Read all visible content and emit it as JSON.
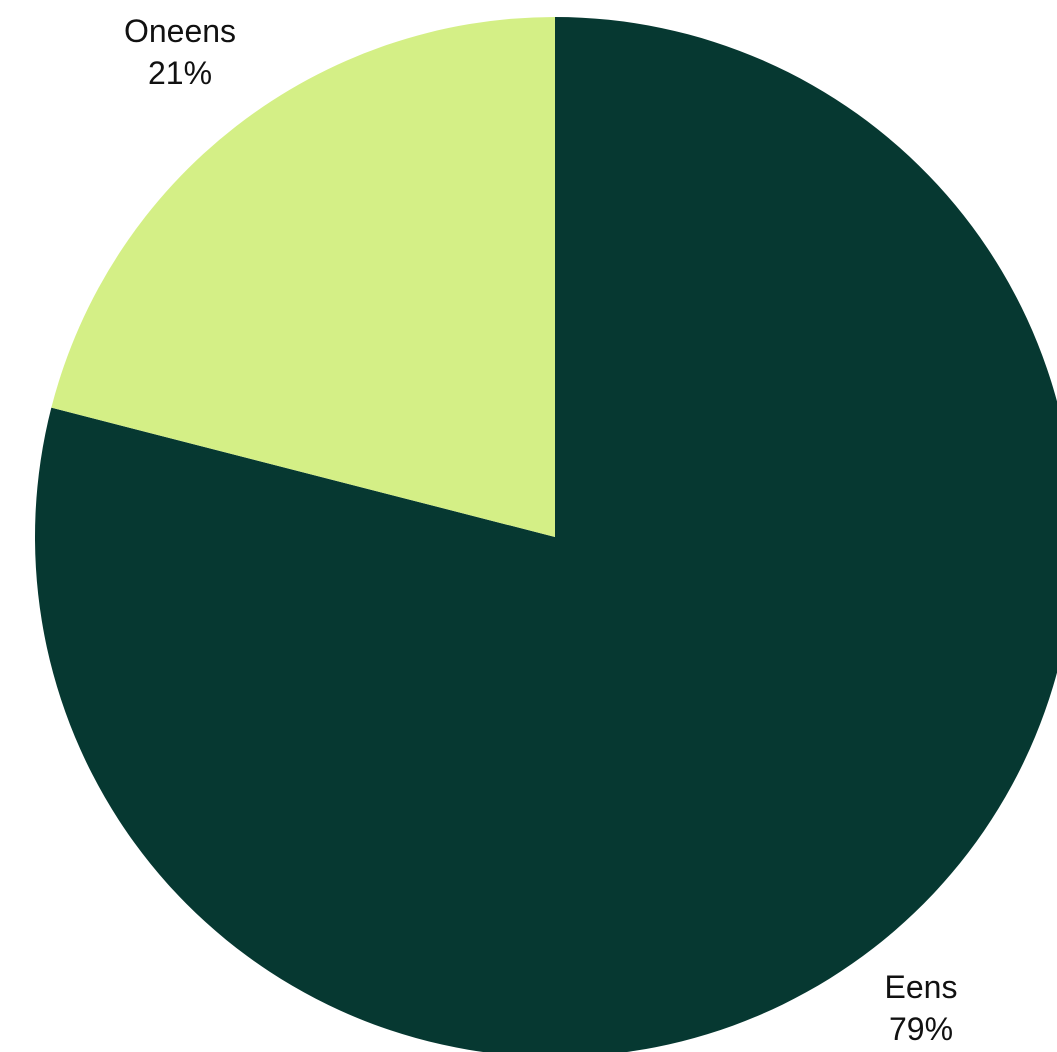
{
  "chart_data": {
    "type": "pie",
    "title": "",
    "slices": [
      {
        "label": "Eens",
        "value": 79,
        "value_label": "79%",
        "color": "#063831"
      },
      {
        "label": "Oneens",
        "value": 21,
        "value_label": "21%",
        "color": "#d4ef86"
      }
    ],
    "start_angle": "12 o'clock",
    "direction": "clockwise",
    "legend": "none",
    "labels": "outside, name above percentage"
  }
}
